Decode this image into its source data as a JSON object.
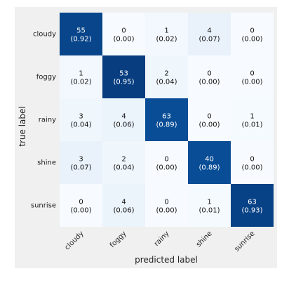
{
  "chart_data": {
    "type": "heatmap",
    "row_categories": [
      "cloudy",
      "foggy",
      "rainy",
      "shine",
      "sunrise"
    ],
    "col_categories": [
      "cloudy",
      "foggy",
      "rainy",
      "shine",
      "sunrise"
    ],
    "counts": [
      [
        55,
        0,
        1,
        4,
        0
      ],
      [
        1,
        53,
        2,
        0,
        0
      ],
      [
        3,
        4,
        63,
        0,
        1
      ],
      [
        3,
        2,
        0,
        40,
        0
      ],
      [
        0,
        4,
        0,
        1,
        63
      ]
    ],
    "fractions": [
      [
        "0.92",
        "0.00",
        "0.02",
        "0.07",
        "0.00"
      ],
      [
        "0.02",
        "0.95",
        "0.04",
        "0.00",
        "0.00"
      ],
      [
        "0.04",
        "0.06",
        "0.89",
        "0.00",
        "0.01"
      ],
      [
        "0.07",
        "0.04",
        "0.00",
        "0.89",
        "0.00"
      ],
      [
        "0.00",
        "0.06",
        "0.00",
        "0.01",
        "0.93"
      ]
    ],
    "xlabel": "predicted label",
    "ylabel": "true label",
    "colormap": {
      "low": "#f7fbff",
      "high": "#08306b"
    }
  }
}
